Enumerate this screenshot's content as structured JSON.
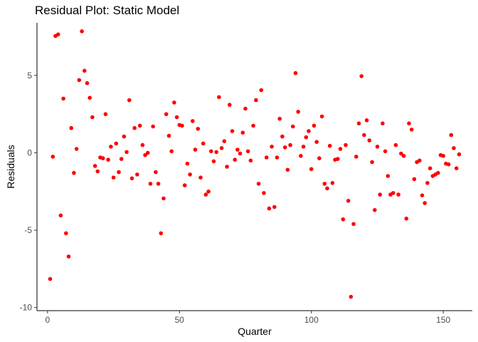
{
  "chart_data": {
    "type": "scatter",
    "title": "Residual Plot: Static Model",
    "xlabel": "Quarter",
    "ylabel": "Residuals",
    "xlim": [
      -4,
      161
    ],
    "ylim": [
      -10.2,
      8.4
    ],
    "xticks": [
      0,
      50,
      100,
      150
    ],
    "yticks": [
      -10,
      -5,
      0,
      5
    ],
    "ytick_labels": [
      "-10",
      "-5",
      "0",
      "5"
    ],
    "grid": false,
    "legend": "none",
    "point_color": "#ff0000",
    "axis_color": "#000000",
    "x": [
      1,
      2,
      3,
      4,
      5,
      6,
      7,
      8,
      9,
      10,
      11,
      12,
      13,
      14,
      15,
      16,
      17,
      18,
      19,
      20,
      21,
      22,
      23,
      24,
      25,
      26,
      27,
      28,
      29,
      30,
      31,
      32,
      33,
      34,
      35,
      36,
      37,
      38,
      39,
      40,
      41,
      42,
      43,
      44,
      45,
      46,
      47,
      48,
      49,
      50,
      51,
      52,
      53,
      54,
      55,
      56,
      57,
      58,
      59,
      60,
      61,
      62,
      63,
      64,
      65,
      66,
      67,
      68,
      69,
      70,
      71,
      72,
      73,
      74,
      75,
      76,
      77,
      78,
      79,
      80,
      81,
      82,
      83,
      84,
      85,
      86,
      87,
      88,
      89,
      90,
      91,
      92,
      93,
      94,
      95,
      96,
      97,
      98,
      99,
      100,
      101,
      102,
      103,
      104,
      105,
      106,
      107,
      108,
      109,
      110,
      111,
      112,
      113,
      114,
      115,
      116,
      117,
      118,
      119,
      120,
      121,
      122,
      123,
      124,
      125,
      126,
      127,
      128,
      129,
      130,
      131,
      132,
      133,
      134,
      135,
      136,
      137,
      138,
      139,
      140,
      141,
      142,
      143,
      144,
      145,
      146,
      147,
      148,
      149,
      150,
      151,
      152,
      153,
      154,
      155,
      156
    ],
    "y": [
      -8.15,
      -0.25,
      7.55,
      7.65,
      -4.05,
      3.5,
      -5.2,
      -6.7,
      1.6,
      -1.3,
      0.25,
      4.7,
      7.85,
      5.3,
      4.5,
      3.55,
      2.3,
      -0.85,
      -1.2,
      -0.3,
      -0.35,
      2.5,
      -0.45,
      0.4,
      -1.6,
      0.6,
      -1.25,
      -0.4,
      1.05,
      0.05,
      3.4,
      -1.65,
      1.6,
      -1.4,
      1.75,
      0.5,
      -0.15,
      0.0,
      -2.0,
      1.7,
      -1.25,
      -2.0,
      -5.2,
      -2.95,
      2.5,
      1.1,
      0.1,
      3.25,
      2.3,
      1.8,
      1.75,
      -2.1,
      -0.7,
      -1.4,
      2.05,
      0.2,
      1.55,
      -1.6,
      0.6,
      -2.7,
      -2.5,
      0.1,
      -0.55,
      0.05,
      3.6,
      0.3,
      0.75,
      -0.9,
      3.1,
      1.4,
      -0.45,
      0.2,
      -0.05,
      1.3,
      2.85,
      0.1,
      -0.5,
      1.75,
      3.4,
      -2.0,
      4.05,
      -2.6,
      -0.3,
      -3.6,
      0.4,
      -3.5,
      -0.3,
      2.2,
      1.05,
      0.35,
      -1.1,
      0.5,
      1.7,
      5.15,
      2.65,
      -0.2,
      0.4,
      1.0,
      1.4,
      -1.05,
      1.75,
      0.7,
      -0.35,
      2.35,
      -2.0,
      -2.3,
      0.45,
      -1.95,
      -0.45,
      -0.4,
      0.25,
      -4.3,
      0.5,
      -3.1,
      -9.3,
      -4.6,
      -0.25,
      1.9,
      4.95,
      1.15,
      2.1,
      0.8,
      -0.6,
      -3.7,
      0.4,
      -2.7,
      1.9,
      0.1,
      -1.5,
      -2.7,
      -2.6,
      0.5,
      -2.7,
      -0.05,
      -0.2,
      -4.25,
      1.9,
      1.5,
      -1.7,
      -0.6,
      -0.5,
      -2.75,
      -3.25,
      -1.95,
      -1.0,
      -1.5,
      -1.4,
      -1.3,
      -0.15,
      -0.2,
      -0.7,
      -0.75,
      1.15,
      0.3,
      -1.0,
      -0.1
    ]
  }
}
